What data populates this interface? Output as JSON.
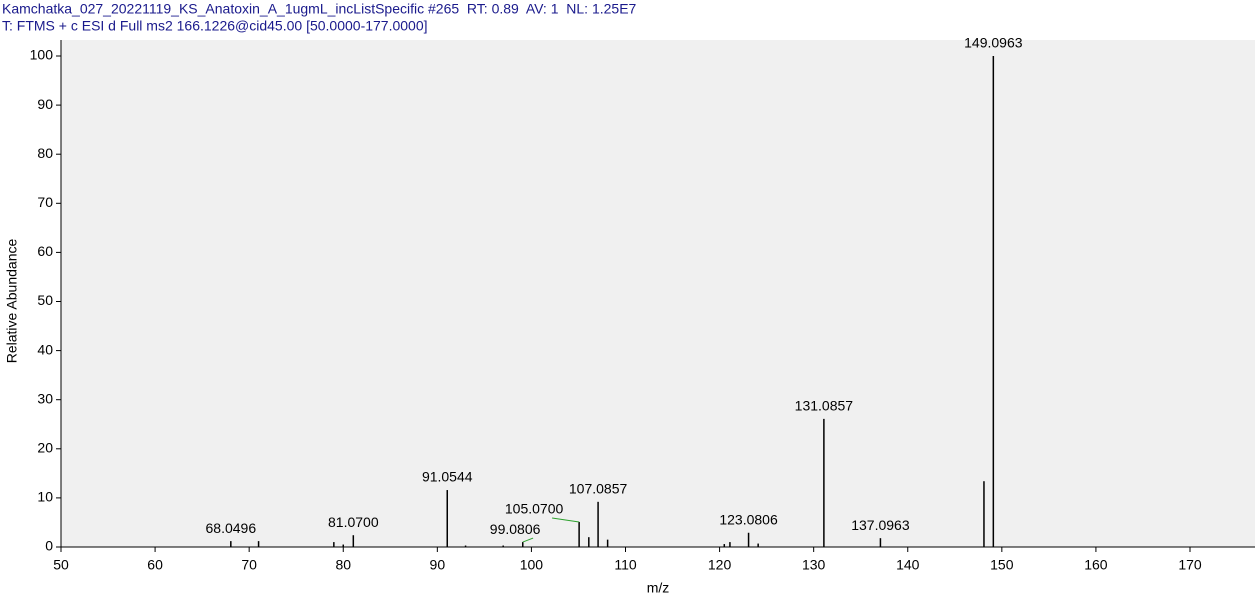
{
  "chart_data": {
    "type": "spectrum",
    "title": "Kamchatka_027_20221119_KS_Anatoxin_A_1ugmL_incListSpecific #265  RT: 0.89  AV: 1  NL: 1.25E7",
    "subtitle": "T: FTMS + c ESI d Full ms2 166.1226@cid45.00 [50.0000-177.0000]",
    "x_label": "m/z",
    "y_label": "Relative Abundance",
    "x": [
      68.0496,
      71.0,
      79.0,
      80.0,
      81.07,
      91.0544,
      93.0,
      97.0,
      99.0806,
      105.07,
      106.1,
      107.0857,
      108.1,
      120.5,
      121.1,
      123.0806,
      124.1,
      131.0857,
      137.0963,
      148.1,
      149.0963
    ],
    "values": [
      1.2,
      1.2,
      1.0,
      0.5,
      2.4,
      11.6,
      0.3,
      0.3,
      1.0,
      5.1,
      2.0,
      9.2,
      1.5,
      0.6,
      1.0,
      2.9,
      0.7,
      26.1,
      1.8,
      13.4,
      100
    ],
    "peak_labels": [
      "68.0496",
      null,
      null,
      null,
      "81.0700",
      "91.0544",
      null,
      null,
      "99.0806",
      "105.0700",
      null,
      "107.0857",
      null,
      null,
      null,
      "123.0806",
      null,
      "131.0857",
      "137.0963",
      null,
      "149.0963"
    ],
    "color": "#000000",
    "leader_color": "#2ca02c",
    "xlim": [
      50,
      177
    ],
    "ylim": [
      0,
      100
    ],
    "xticks": [
      50,
      60,
      70,
      80,
      90,
      100,
      110,
      120,
      130,
      140,
      150,
      160,
      170
    ],
    "yticks": [
      0,
      10,
      20,
      30,
      40,
      50,
      60,
      70,
      80,
      90,
      100
    ]
  }
}
